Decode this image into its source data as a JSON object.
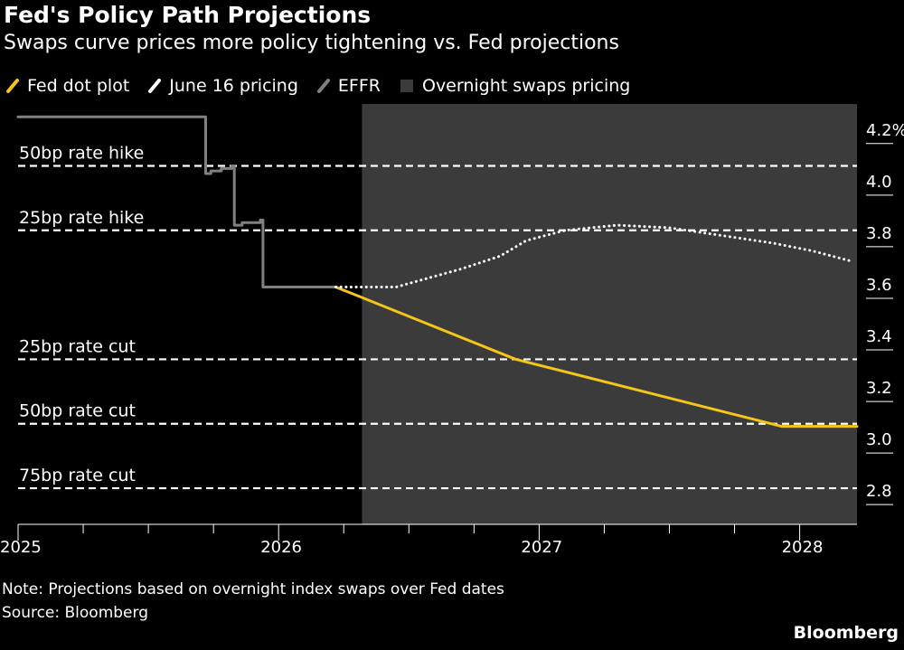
{
  "title": "Fed's Policy Path Projections",
  "subtitle": "Swaps curve prices more policy tightening vs. Fed projections",
  "legend": [
    {
      "label": "Fed dot plot",
      "color": "#f5c518",
      "icon": "diagonal-line-swatch"
    },
    {
      "label": "June 16 pricing",
      "color": "#ffffff",
      "icon": "diagonal-line-swatch"
    },
    {
      "label": "EFFR",
      "color": "#808080",
      "icon": "diagonal-line-swatch"
    },
    {
      "label": "Overnight swaps pricing",
      "color": "#3b3b3b",
      "icon": "square-swatch"
    }
  ],
  "note": "Note: Projections based on overnight index swaps over Fed dates",
  "source": "Source: Bloomberg",
  "brand": "Bloomberg",
  "chart_data": {
    "type": "line",
    "x_unit": "year (decimal)",
    "xlim": [
      2025.0,
      2028.22
    ],
    "ylim": [
      2.72,
      4.35
    ],
    "x_ticks": [
      {
        "value": 2025,
        "label": "2025"
      },
      {
        "value": 2026,
        "label": "2026"
      },
      {
        "value": 2027,
        "label": "2027"
      },
      {
        "value": 2028,
        "label": "2028"
      }
    ],
    "y_ticks": [
      {
        "value": 4.2,
        "label": "4.2%"
      },
      {
        "value": 4.0,
        "label": "4.0"
      },
      {
        "value": 3.8,
        "label": "3.8"
      },
      {
        "value": 3.6,
        "label": "3.6"
      },
      {
        "value": 3.4,
        "label": "3.4"
      },
      {
        "value": 3.2,
        "label": "3.2"
      },
      {
        "value": 3.0,
        "label": "3.0"
      },
      {
        "value": 2.8,
        "label": "2.8"
      }
    ],
    "shaded_region": {
      "label": "Overnight swaps pricing",
      "x_start": 2026.32,
      "x_end": 2028.22,
      "color": "#3b3b3b"
    },
    "reference_lines": [
      {
        "label": "50bp rate hike",
        "y": 4.11
      },
      {
        "label": "25bp rate hike",
        "y": 3.86
      },
      {
        "label": "25bp rate cut",
        "y": 3.36
      },
      {
        "label": "50bp rate cut",
        "y": 3.11
      },
      {
        "label": "75bp rate cut",
        "y": 2.86
      }
    ],
    "series": [
      {
        "name": "EFFR",
        "color": "#808080",
        "style": "step",
        "points": [
          [
            2025.0,
            4.3
          ],
          [
            2025.71,
            4.3
          ],
          [
            2025.72,
            4.08
          ],
          [
            2025.74,
            4.09
          ],
          [
            2025.78,
            4.1
          ],
          [
            2025.82,
            4.11
          ],
          [
            2025.83,
            3.88
          ],
          [
            2025.86,
            3.89
          ],
          [
            2025.93,
            3.9
          ],
          [
            2025.94,
            3.64
          ],
          [
            2026.22,
            3.64
          ]
        ]
      },
      {
        "name": "Fed dot plot",
        "color": "#f5c518",
        "style": "solid",
        "points": [
          [
            2026.22,
            3.64
          ],
          [
            2026.91,
            3.36
          ],
          [
            2027.93,
            3.1
          ],
          [
            2028.22,
            3.1
          ]
        ]
      },
      {
        "name": "June 16 pricing",
        "color": "#ffffff",
        "style": "dotted",
        "points": [
          [
            2026.22,
            3.64
          ],
          [
            2026.45,
            3.64
          ],
          [
            2026.7,
            3.71
          ],
          [
            2026.85,
            3.76
          ],
          [
            2026.95,
            3.82
          ],
          [
            2027.1,
            3.86
          ],
          [
            2027.3,
            3.88
          ],
          [
            2027.5,
            3.87
          ],
          [
            2027.7,
            3.84
          ],
          [
            2027.9,
            3.81
          ],
          [
            2028.05,
            3.78
          ],
          [
            2028.2,
            3.74
          ]
        ]
      }
    ]
  }
}
